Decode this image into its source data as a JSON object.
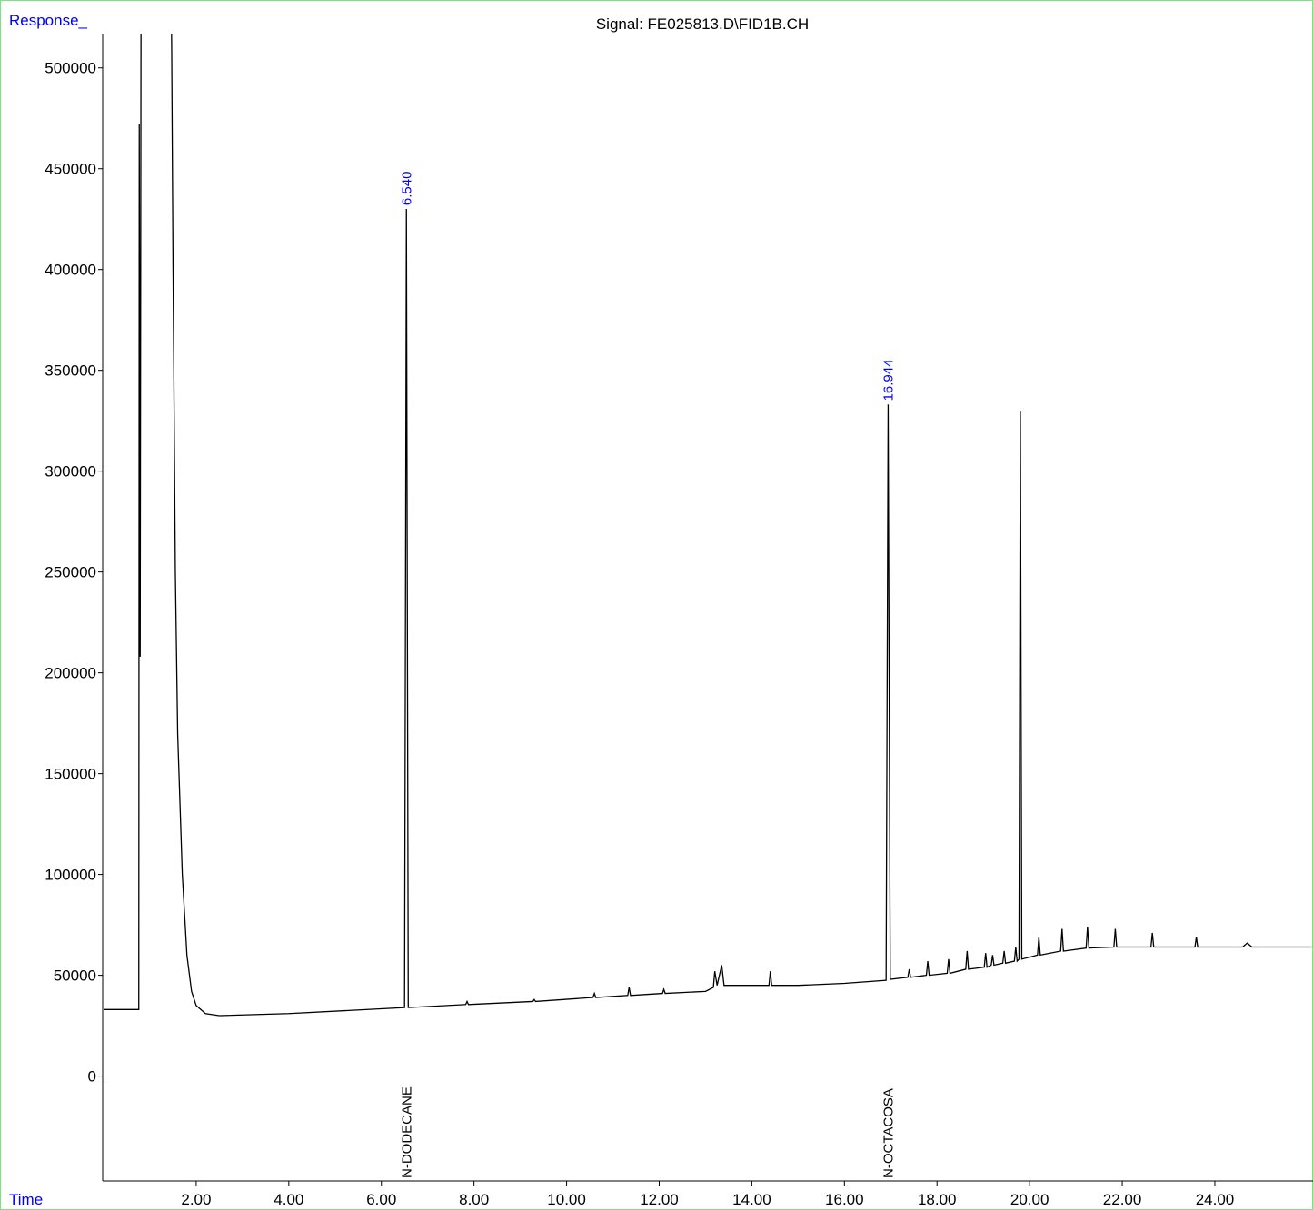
{
  "chart_data": {
    "type": "line",
    "title": "Signal: FE025813.D\\FID1B.CH",
    "y_label": "Response_",
    "x_label": "Time",
    "xlim": [
      0,
      26.12
    ],
    "ylim": [
      -52000,
      517000
    ],
    "xticks": [
      {
        "value": 2,
        "label": "2.00"
      },
      {
        "value": 4,
        "label": "4.00"
      },
      {
        "value": 6,
        "label": "6.00"
      },
      {
        "value": 8,
        "label": "8.00"
      },
      {
        "value": 10,
        "label": "10.00"
      },
      {
        "value": 12,
        "label": "12.00"
      },
      {
        "value": 14,
        "label": "14.00"
      },
      {
        "value": 16,
        "label": "16.00"
      },
      {
        "value": 18,
        "label": "18.00"
      },
      {
        "value": 20,
        "label": "20.00"
      },
      {
        "value": 22,
        "label": "22.00"
      },
      {
        "value": 24,
        "label": "24.00"
      }
    ],
    "yticks": [
      0,
      50000,
      100000,
      150000,
      200000,
      250000,
      300000,
      350000,
      400000,
      450000,
      500000
    ],
    "grid": false,
    "peaks": [
      {
        "rt": {
          "value": 6.54,
          "label": "6.540"
        },
        "compound": "N-DODECANE",
        "height": 430000
      },
      {
        "rt": {
          "value": 16.944,
          "label": "16.944"
        },
        "compound": "N-OCTACOSA",
        "height": 333000
      }
    ],
    "series": [
      {
        "color": "#000000",
        "x": [
          0,
          0.76,
          0.77,
          0.79,
          0.81,
          1.45,
          1.47,
          1.5,
          1.55,
          1.6,
          1.7,
          1.8,
          1.9,
          2.0,
          2.2,
          2.5,
          4.0,
          6.5,
          6.54,
          6.58,
          7.82,
          7.85,
          7.88,
          9.27,
          9.3,
          9.33,
          10.57,
          10.6,
          10.63,
          11.32,
          11.35,
          11.38,
          12.07,
          12.1,
          12.13,
          13.0,
          13.17,
          13.2,
          13.25,
          13.35,
          13.4,
          14.37,
          14.4,
          14.43,
          15.0,
          16.0,
          16.9,
          16.944,
          16.99,
          17.37,
          17.4,
          17.43,
          17.77,
          17.8,
          17.83,
          18.22,
          18.25,
          18.28,
          18.62,
          18.65,
          18.68,
          19.02,
          19.05,
          19.08,
          19.17,
          19.2,
          19.23,
          19.42,
          19.45,
          19.48,
          19.67,
          19.7,
          19.73,
          19.77,
          19.8,
          19.83,
          20.17,
          20.2,
          20.23,
          20.67,
          20.7,
          20.73,
          21.22,
          21.25,
          21.28,
          21.82,
          21.85,
          21.88,
          22.62,
          22.65,
          22.68,
          23.57,
          23.6,
          23.63,
          24.6,
          24.7,
          24.8,
          26.1
        ],
        "values": [
          33000,
          33000,
          472000,
          208000,
          560000,
          560000,
          512000,
          400000,
          250000,
          170000,
          100000,
          60000,
          42000,
          35000,
          31000,
          30000,
          31000,
          34000,
          430000,
          34000,
          35500,
          37000,
          35500,
          37000,
          38000,
          37000,
          39000,
          41000,
          39000,
          40000,
          44000,
          40000,
          41000,
          43000,
          41000,
          42000,
          44000,
          52000,
          45000,
          55000,
          45000,
          45000,
          52000,
          45000,
          45000,
          46000,
          47500,
          333000,
          48000,
          49000,
          53000,
          49000,
          50000,
          57000,
          50000,
          51000,
          58000,
          51000,
          53000,
          62000,
          53000,
          54000,
          61000,
          54000,
          55000,
          60000,
          55000,
          56000,
          62000,
          56000,
          57000,
          64000,
          57000,
          58000,
          330000,
          58000,
          60000,
          69000,
          60000,
          62000,
          73000,
          62000,
          63500,
          74000,
          63500,
          64000,
          73000,
          64000,
          64000,
          71000,
          64000,
          64000,
          69000,
          64000,
          64000,
          66000,
          64000,
          64000
        ]
      }
    ]
  }
}
